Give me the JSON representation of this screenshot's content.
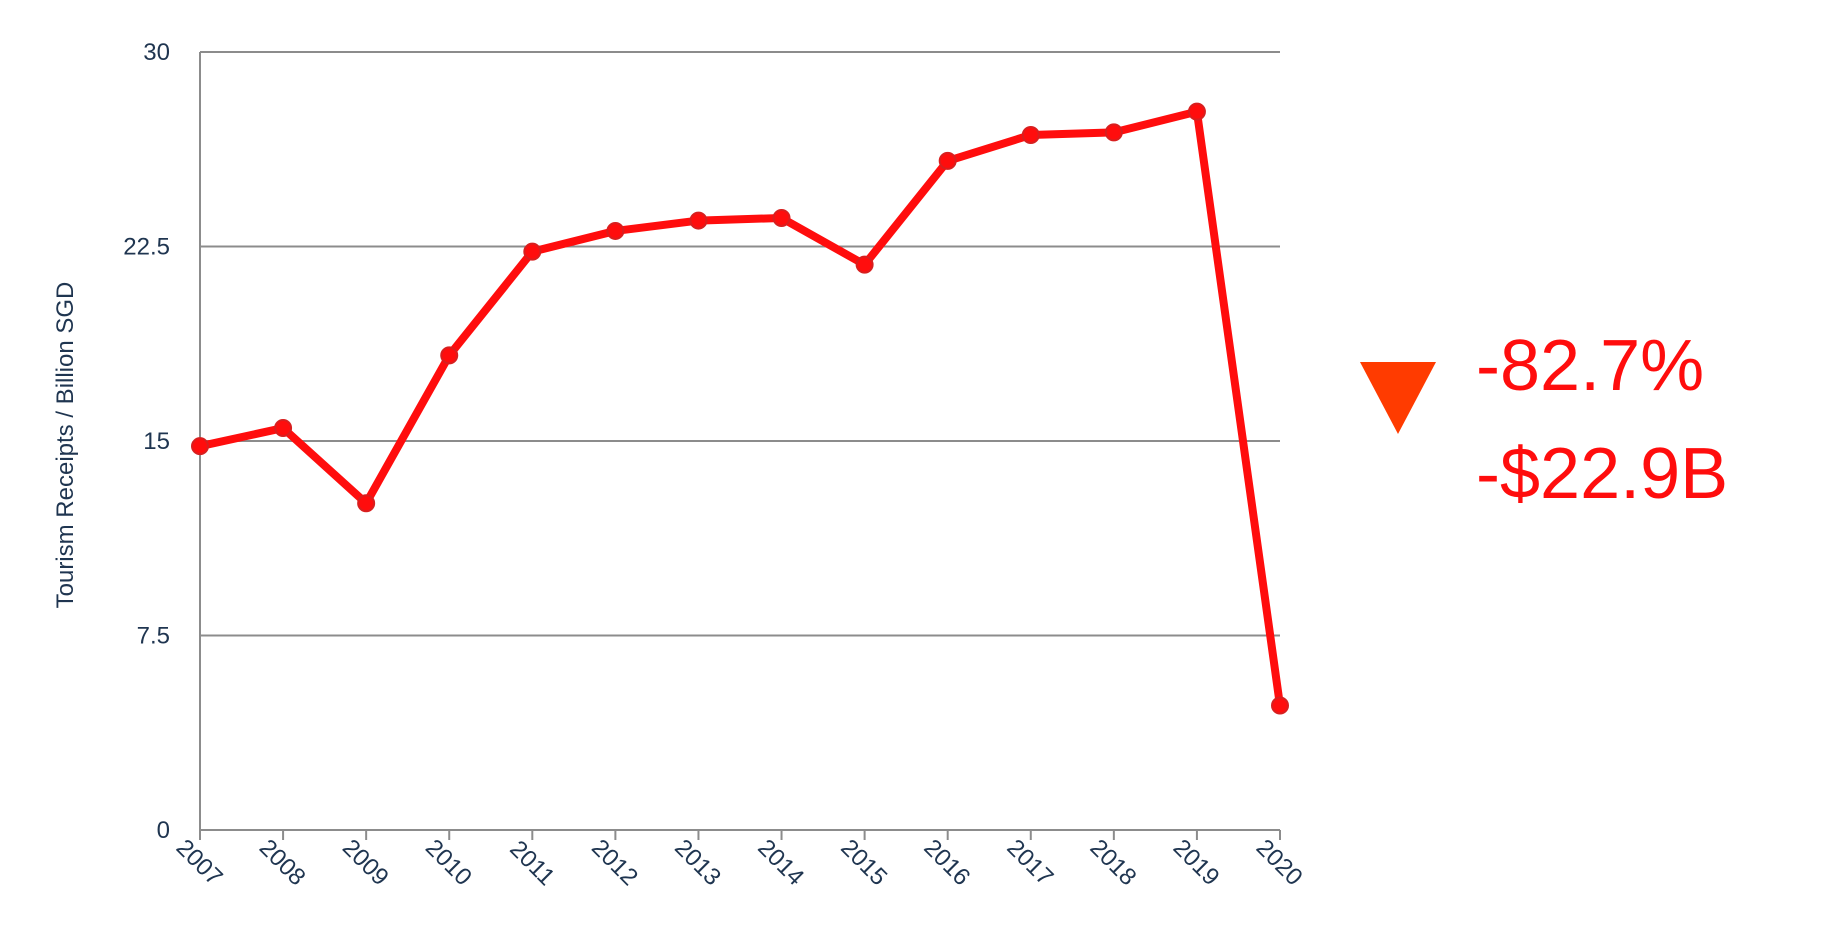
{
  "chart_data": {
    "type": "line",
    "title": "",
    "xlabel": "",
    "ylabel": "Tourism Receipts / Billion SGD",
    "ylim": [
      0,
      30
    ],
    "yticks": [
      "0",
      "7.5",
      "15",
      "22.5",
      "30"
    ],
    "grid": true,
    "x": [
      "2007",
      "2008",
      "2009",
      "2010",
      "2011",
      "2012",
      "2013",
      "2014",
      "2015",
      "2016",
      "2017",
      "2018",
      "2019",
      "2020"
    ],
    "series": [
      {
        "values": [
          14.8,
          15.5,
          12.6,
          18.3,
          22.3,
          23.1,
          23.5,
          23.6,
          21.8,
          25.8,
          26.8,
          26.9,
          27.7,
          4.8
        ],
        "color": "#ff0d0d"
      }
    ]
  },
  "annotation": {
    "percent_change": "-82.7%",
    "absolute_change": "-$22.9B",
    "arrow_icon": "down-triangle-icon",
    "arrow_color": "#ff3b00",
    "text_color": "#ff0d0d"
  },
  "colors": {
    "line": "#ff0d0d",
    "marker_stroke": "#d81f1f",
    "grid": "#8c8c8c",
    "axis_text": "#1f3550"
  }
}
